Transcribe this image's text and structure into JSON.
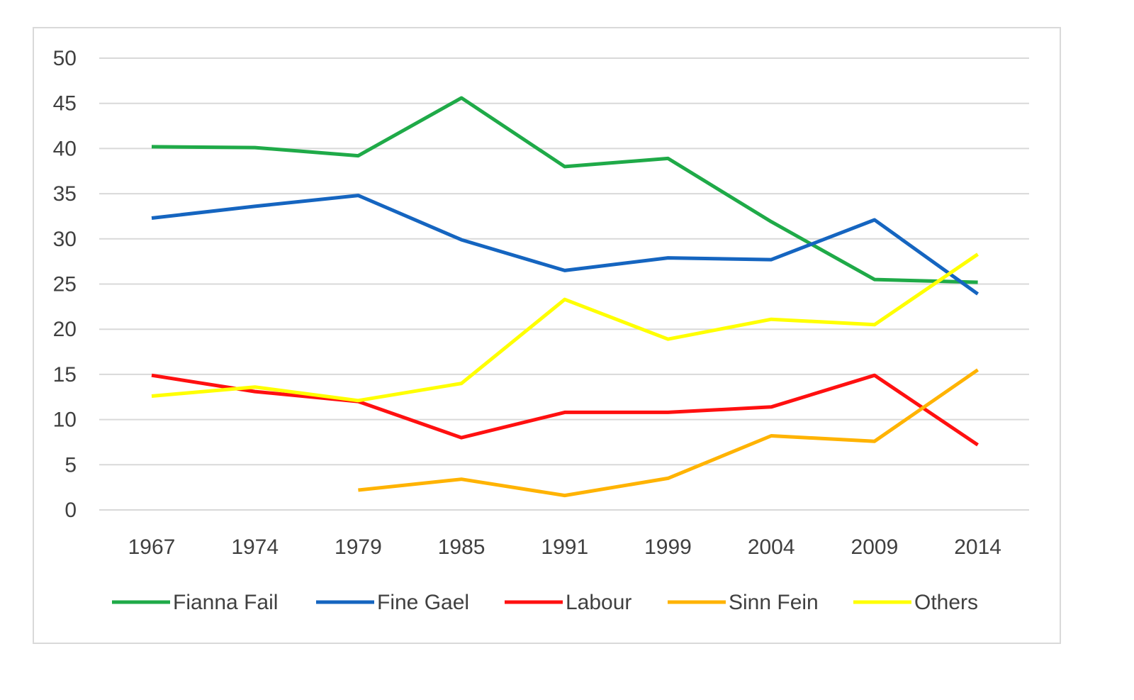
{
  "chart_data": {
    "type": "line",
    "title": "",
    "xlabel": "",
    "ylabel": "",
    "ylim": [
      0,
      50
    ],
    "y_ticks": [
      "0",
      "5",
      "10",
      "15",
      "20",
      "25",
      "30",
      "35",
      "40",
      "45",
      "50"
    ],
    "grid": true,
    "legend_position": "bottom",
    "categories": [
      "1967",
      "1974",
      "1979",
      "1985",
      "1991",
      "1999",
      "2004",
      "2009",
      "2014"
    ],
    "series": [
      {
        "name": "Fianna Fail",
        "color": "#1faa48",
        "values": [
          40.2,
          40.1,
          39.2,
          45.6,
          38.0,
          38.9,
          31.9,
          25.5,
          25.2
        ]
      },
      {
        "name": "Fine Gael",
        "color": "#1565c0",
        "values": [
          32.3,
          33.6,
          34.8,
          29.9,
          26.5,
          27.9,
          27.7,
          32.1,
          23.9
        ]
      },
      {
        "name": "Labour",
        "color": "#ff1010",
        "values": [
          14.9,
          13.1,
          12.0,
          8.0,
          10.8,
          10.8,
          11.4,
          14.9,
          7.2
        ]
      },
      {
        "name": "Sinn Fein",
        "color": "#ffb300",
        "values": [
          null,
          null,
          2.2,
          3.4,
          1.6,
          3.5,
          8.2,
          7.6,
          15.5
        ]
      },
      {
        "name": "Others",
        "color": "#ffff00",
        "values": [
          12.6,
          13.6,
          12.1,
          14.0,
          23.3,
          18.9,
          21.1,
          20.5,
          28.3
        ]
      }
    ]
  }
}
